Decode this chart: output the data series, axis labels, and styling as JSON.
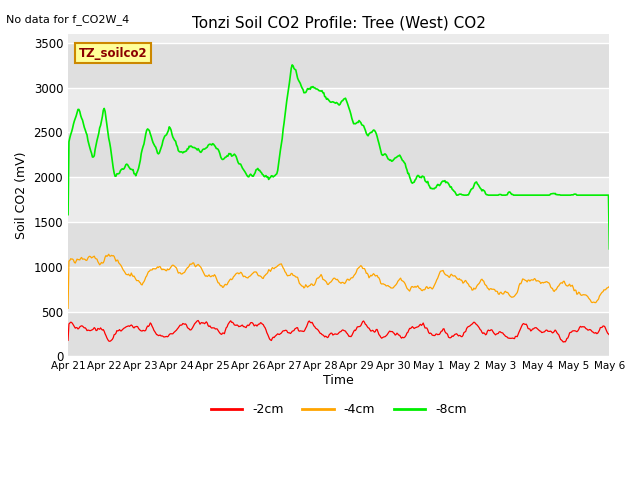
{
  "title": "Tonzi Soil CO2 Profile: Tree (West) CO2",
  "subtitle": "No data for f_CO2W_4",
  "ylabel": "Soil CO2 (mV)",
  "xlabel": "Time",
  "ylim": [
    0,
    3600
  ],
  "yticks": [
    0,
    500,
    1000,
    1500,
    2000,
    2500,
    3000,
    3500
  ],
  "date_labels": [
    "Apr 21",
    "Apr 22",
    "Apr 23",
    "Apr 24",
    "Apr 25",
    "Apr 26",
    "Apr 27",
    "Apr 28",
    "Apr 29",
    "Apr 30",
    "May 1",
    "May 2",
    "May 3",
    "May 4",
    "May 5",
    "May 6"
  ],
  "legend_label": "TZ_soilco2",
  "series_labels": [
    "-2cm",
    "-4cm",
    "-8cm"
  ],
  "series_colors": [
    "#ff0000",
    "#ffa500",
    "#00ee00"
  ],
  "plot_bg_color": "#ebebeb",
  "band_color": "#e0e0e0",
  "n_points": 600
}
